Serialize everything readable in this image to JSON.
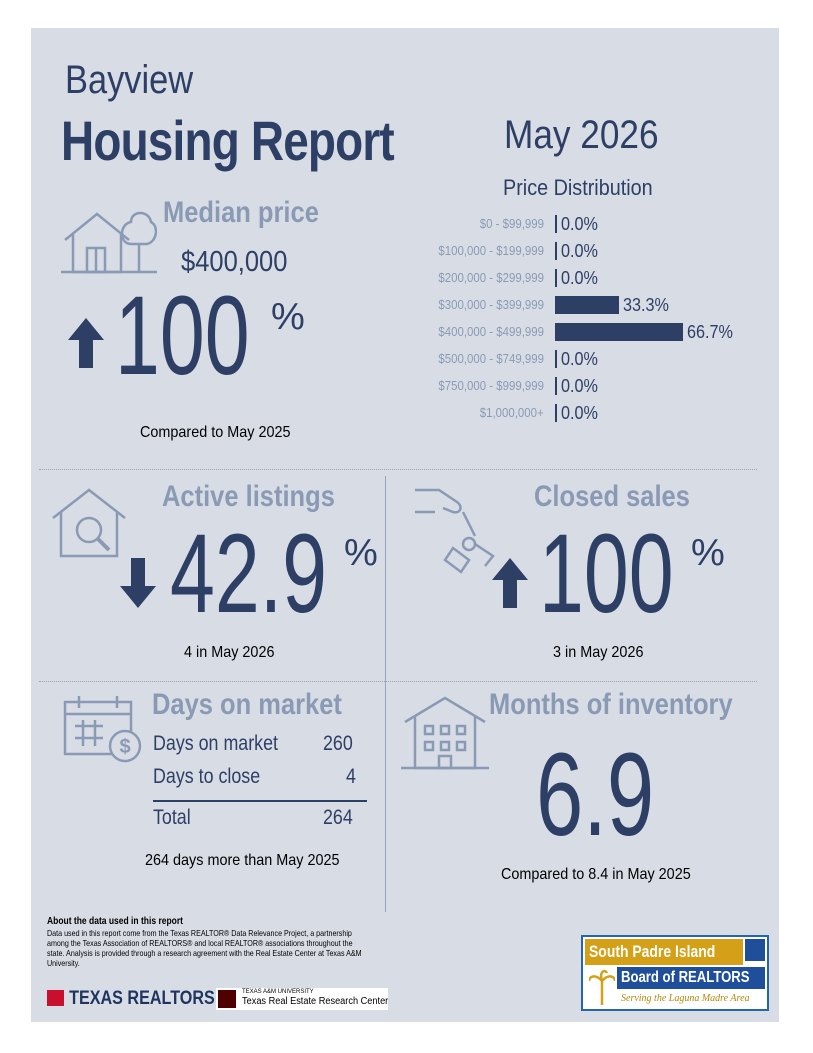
{
  "header": {
    "city": "Bayview",
    "title": "Housing Report",
    "month": "May 2026"
  },
  "median_price": {
    "title": "Median price",
    "value": "$400,000",
    "change_number": "100",
    "change_unit": "%",
    "direction": "up",
    "caption": "Compared to May 2025"
  },
  "price_distribution": {
    "title": "Price Distribution",
    "rows": [
      {
        "range": "$0 - $99,999",
        "value": "0.0%",
        "fraction": 0.0
      },
      {
        "range": "$100,000 - $199,999",
        "value": "0.0%",
        "fraction": 0.0
      },
      {
        "range": "$200,000 - $299,999",
        "value": "0.0%",
        "fraction": 0.0
      },
      {
        "range": "$300,000 - $399,999",
        "value": "33.3%",
        "fraction": 0.333
      },
      {
        "range": "$400,000 - $499,999",
        "value": "66.7%",
        "fraction": 0.667
      },
      {
        "range": "$500,000 - $749,999",
        "value": "0.0%",
        "fraction": 0.0
      },
      {
        "range": "$750,000 - $999,999",
        "value": "0.0%",
        "fraction": 0.0
      },
      {
        "range": "$1,000,000+",
        "value": "0.0%",
        "fraction": 0.0
      }
    ]
  },
  "active_listings": {
    "title": "Active listings",
    "change_number": "42.9",
    "change_unit": "%",
    "direction": "down",
    "caption": "4 in May 2026"
  },
  "closed_sales": {
    "title": "Closed sales",
    "change_number": "100",
    "change_unit": "%",
    "direction": "up",
    "caption": "3 in May 2026"
  },
  "days_on_market": {
    "title": "Days on market",
    "rows": [
      {
        "label": "Days on market",
        "value": "260"
      },
      {
        "label": "Days to close",
        "value": "4"
      }
    ],
    "total_label": "Total",
    "total_value": "264",
    "caption": "264 days more than May 2025"
  },
  "months_of_inventory": {
    "title": "Months of inventory",
    "value": "6.9",
    "caption": "Compared to 8.4 in May 2025"
  },
  "footer": {
    "about_title": "About the data used in this report",
    "about_text": "Data used in this report come from the Texas REALTOR® Data Relevance Project, a partnership among the Texas Association of REALTORS® and local REALTOR® associations throughout the state. Analysis is provided through a research agreement with the Real Estate Center at Texas A&M University.",
    "texas_realtors": "TEXAS REALTORS",
    "tamu_small": "TEXAS A&M UNIVERSITY",
    "tamu_center": "Texas Real Estate Research Center",
    "sp_line1": "South Padre Island",
    "sp_line2": "Board of REALTORS",
    "sp_tagline": "Serving the Laguna Madre Area"
  },
  "colors": {
    "navy": "#2e3f66",
    "muted": "#8a9ab5",
    "panel": "#d8dde5"
  }
}
